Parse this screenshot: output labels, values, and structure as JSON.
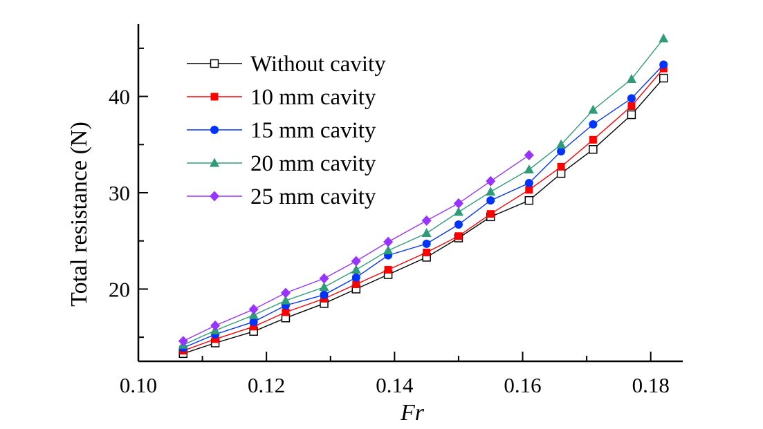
{
  "chart_data": {
    "type": "line",
    "xlabel": "Fr",
    "ylabel": "Total resistance (N)",
    "xlim": [
      0.1,
      0.185
    ],
    "ylim": [
      12.5,
      47.5
    ],
    "x_ticks": [
      "0.10",
      "0.12",
      "0.14",
      "0.16",
      "0.18"
    ],
    "y_ticks": [
      "20",
      "30",
      "40"
    ],
    "grid": false,
    "legend_position": "top-left",
    "series": [
      {
        "name": "Without cavity",
        "color": "#000000",
        "marker": "open-square",
        "x": [
          0.107,
          0.112,
          0.118,
          0.123,
          0.129,
          0.134,
          0.139,
          0.145,
          0.15,
          0.155,
          0.161,
          0.166,
          0.171,
          0.177,
          0.182
        ],
        "y": [
          13.3,
          14.4,
          15.6,
          17.0,
          18.5,
          20.0,
          21.5,
          23.3,
          25.3,
          27.5,
          29.2,
          32.0,
          34.5,
          38.1,
          41.9
        ]
      },
      {
        "name": "10 mm cavity",
        "color": "#ff0000",
        "marker": "filled-square",
        "x": [
          0.107,
          0.112,
          0.118,
          0.123,
          0.129,
          0.134,
          0.139,
          0.145,
          0.15,
          0.155,
          0.161,
          0.166,
          0.171,
          0.177,
          0.182
        ],
        "y": [
          13.6,
          14.8,
          16.1,
          17.6,
          19.0,
          20.5,
          22.0,
          23.8,
          25.5,
          27.8,
          30.3,
          32.7,
          35.5,
          39.0,
          42.9
        ]
      },
      {
        "name": "15 mm cavity",
        "color": "#0033ff",
        "marker": "filled-circle",
        "x": [
          0.107,
          0.112,
          0.118,
          0.123,
          0.129,
          0.134,
          0.139,
          0.145,
          0.15,
          0.155,
          0.161,
          0.166,
          0.171,
          0.177,
          0.182
        ],
        "y": [
          13.9,
          15.3,
          16.6,
          18.3,
          19.4,
          21.2,
          23.5,
          24.7,
          26.7,
          29.2,
          31.0,
          34.3,
          37.1,
          39.8,
          43.3
        ]
      },
      {
        "name": "20 mm cavity",
        "color": "#2e9c78",
        "marker": "filled-triangle",
        "x": [
          0.107,
          0.112,
          0.118,
          0.123,
          0.129,
          0.134,
          0.139,
          0.145,
          0.15,
          0.155,
          0.161,
          0.166,
          0.171,
          0.177,
          0.182
        ],
        "y": [
          14.2,
          15.7,
          17.3,
          18.8,
          20.2,
          22.0,
          24.0,
          25.8,
          28.0,
          30.1,
          32.4,
          35.0,
          38.6,
          41.8,
          46.0
        ]
      },
      {
        "name": "25 mm cavity",
        "color": "#9933ff",
        "marker": "filled-diamond",
        "x": [
          0.107,
          0.112,
          0.118,
          0.123,
          0.129,
          0.134,
          0.139,
          0.145,
          0.15,
          0.155,
          0.161
        ],
        "y": [
          14.6,
          16.2,
          17.9,
          19.6,
          21.1,
          22.9,
          24.9,
          27.1,
          28.9,
          31.2,
          33.9
        ]
      }
    ]
  }
}
